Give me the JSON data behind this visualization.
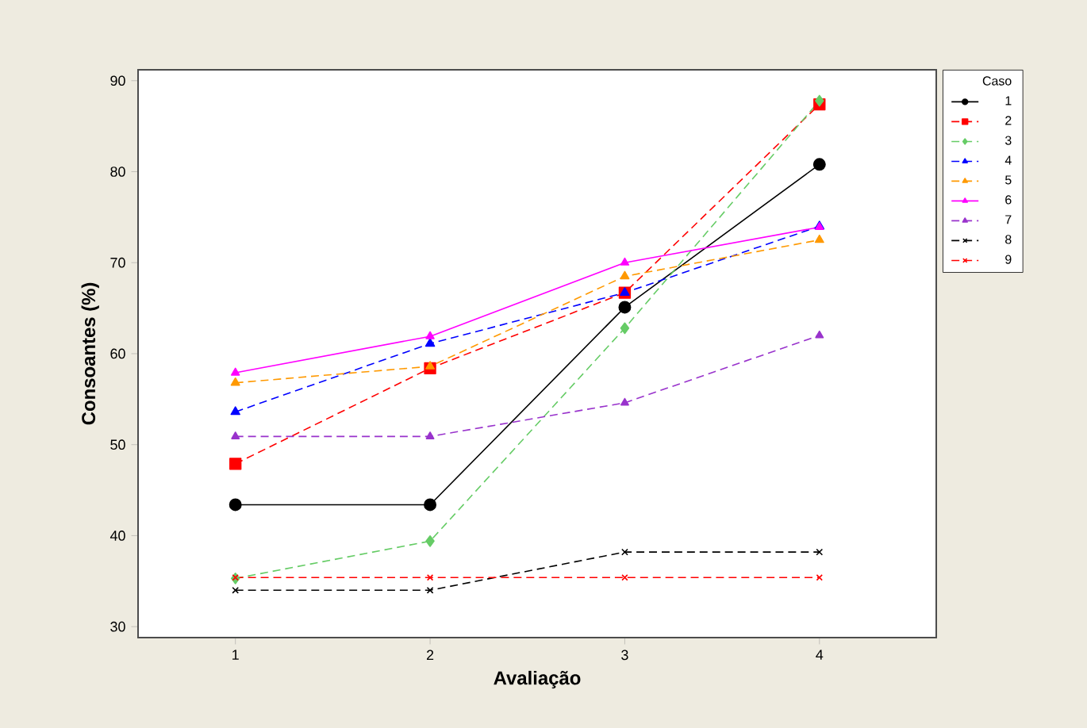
{
  "chart_data": {
    "type": "line",
    "xlabel": "Avaliação",
    "ylabel": "Consoantes (%)",
    "legend_title": "Caso",
    "legend": "right",
    "x": [
      1,
      2,
      3,
      4
    ],
    "xlim": [
      0.5,
      4.6
    ],
    "xticks": [
      1,
      2,
      3,
      4
    ],
    "ylim": [
      28.8,
      91.2
    ],
    "yticks": [
      30,
      40,
      50,
      60,
      70,
      80,
      90
    ],
    "series": [
      {
        "name": "1",
        "color": "#000000",
        "marker": "circle",
        "line_style": "solid",
        "values": [
          43.4,
          43.4,
          65.1,
          80.8
        ]
      },
      {
        "name": "2",
        "color": "#ff0000",
        "marker": "square",
        "line_style": "dashed",
        "values": [
          47.9,
          58.4,
          66.7,
          87.4
        ]
      },
      {
        "name": "3",
        "color": "#66cc66",
        "marker": "diamond",
        "line_style": "dashed",
        "values": [
          35.3,
          39.4,
          62.8,
          87.8
        ]
      },
      {
        "name": "4",
        "color": "#0000ff",
        "marker": "triangle",
        "line_style": "dashed",
        "values": [
          53.6,
          61.1,
          66.7,
          74.0
        ]
      },
      {
        "name": "5",
        "color": "#ff9900",
        "marker": "triangle",
        "line_style": "dashed",
        "values": [
          56.8,
          58.6,
          68.5,
          72.5
        ]
      },
      {
        "name": "6",
        "color": "#ff00ff",
        "marker": "triangle",
        "line_style": "solid",
        "values": [
          57.9,
          61.9,
          70.0,
          73.9
        ]
      },
      {
        "name": "7",
        "color": "#9933cc",
        "marker": "triangle",
        "line_style": "dashed",
        "values": [
          50.9,
          50.9,
          54.6,
          62.0
        ]
      },
      {
        "name": "8",
        "color": "#000000",
        "marker": "cross",
        "line_style": "dashed",
        "values": [
          34.0,
          34.0,
          38.2,
          38.2
        ]
      },
      {
        "name": "9",
        "color": "#ff0000",
        "marker": "cross",
        "line_style": "dashed",
        "values": [
          35.4,
          35.4,
          35.4,
          35.4
        ]
      }
    ]
  }
}
